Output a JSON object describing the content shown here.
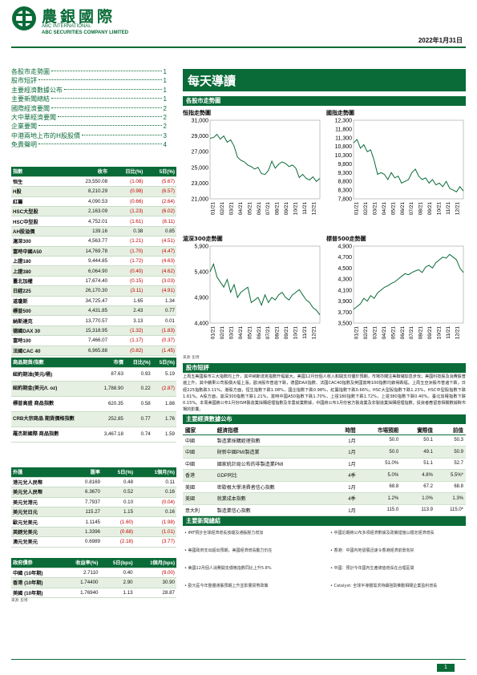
{
  "header": {
    "company_zh": "農銀國際",
    "company_en1": "ABC INTERNATIONAL",
    "company_en2": "ABC SECURITIES COMPANY LIMITED",
    "date": "2022年1月31日"
  },
  "toc": [
    {
      "t": "各股市走勢圖",
      "p": "1"
    },
    {
      "t": "股市短評",
      "p": "1"
    },
    {
      "t": "主要經濟數據公布",
      "p": "1"
    },
    {
      "t": "主要新聞總結",
      "p": "1"
    },
    {
      "t": "國際經濟要聞",
      "p": "2"
    },
    {
      "t": "大中華經濟要聞",
      "p": "2"
    },
    {
      "t": "企業要聞",
      "p": "2"
    },
    {
      "t": "中港兩地上市的H股股價",
      "p": "3"
    },
    {
      "t": "免責聲明",
      "p": "4"
    }
  ],
  "indices": {
    "headers": [
      "指數",
      "收市",
      "日比(%)",
      "5日(%)"
    ],
    "rows": [
      [
        "恒生",
        "23,550.08",
        "(1.08)",
        "(5.67)"
      ],
      [
        "H股",
        "8,210.29",
        "(0.98)",
        "(6.57)"
      ],
      [
        "紅籌",
        "4,090.53",
        "(0.66)",
        "(2.64)"
      ],
      [
        "HSC大型股",
        "2,163.09",
        "(1.23)",
        "(6.02)"
      ],
      [
        "HSC中型股",
        "4,752.01",
        "(1.61)",
        "(8.11)"
      ],
      [
        "AH股溢價",
        "139.16",
        "0.38",
        "0.85"
      ],
      [
        "滬深300",
        "4,563.77",
        "(1.21)",
        "(4.51)"
      ],
      [
        "富時中國A50",
        "14,769.78",
        "(1.70)",
        "(4.47)"
      ],
      [
        "上證180",
        "9,444.85",
        "(1.72)",
        "(4.63)"
      ],
      [
        "上證380",
        "6,064.90",
        "(0.40)",
        "(4.62)"
      ],
      [
        "臺北加權",
        "17,674.40",
        "(0.15)",
        "(3.03)"
      ],
      [
        "日經225",
        "26,170.30",
        "(3.11)",
        "(4.91)"
      ],
      [
        "道瓊斯",
        "34,725.47",
        "1.65",
        "1.34"
      ],
      [
        "標普500",
        "4,431.85",
        "2.43",
        "0.77"
      ],
      [
        "納斯達克",
        "13,770.57",
        "3.13",
        "0.01"
      ],
      [
        "德國DAX 30",
        "15,318.95",
        "(1.32)",
        "(1.83)"
      ],
      [
        "富時100",
        "7,466.07",
        "(1.17)",
        "(0.37)"
      ],
      [
        "法國CAC 40",
        "6,965.88",
        "(0.82)",
        "(1.45)"
      ]
    ]
  },
  "commodities": {
    "headers": [
      "商品期貨/指數",
      "市價",
      "日比(%)",
      "5日(%)"
    ],
    "rows": [
      [
        "紐約期油(美元/桶)",
        "87.63",
        "0.93",
        "5.19"
      ],
      [
        "紐約期金(美元/t. oz)",
        "1,788.90",
        "0.22",
        "(2.87)"
      ],
      [
        "標普高盛 商品指數",
        "620.35",
        "0.58",
        "1.88"
      ],
      [
        "CRB大宗商品 期貨價格指數",
        "252.85",
        "0.77",
        "1.76"
      ],
      [
        "羅杰斯國際 商品指數",
        "3,467.18",
        "0.74",
        "1.59"
      ]
    ]
  },
  "fx": {
    "headers": [
      "外匯",
      "匯率",
      "5日(%)",
      "1個月(%)"
    ],
    "rows": [
      [
        "港元兌人民幣",
        "0.8169",
        "0.48",
        "0.11"
      ],
      [
        "美元兌人民幣",
        "6.3670",
        "0.52",
        "0.16"
      ],
      [
        "美元兌港元",
        "7.7937",
        "0.10",
        "(0.04)"
      ],
      [
        "美元兌日元",
        "115.27",
        "1.15",
        "0.16"
      ],
      [
        "歐元兌美元",
        "1.1145",
        "(1.60)",
        "(1.98)"
      ],
      [
        "英鎊兌美元",
        "1.3396",
        "(0.68)",
        "(1.01)"
      ],
      [
        "澳元兌美元",
        "0.6989",
        "(2.18)",
        "(3.77)"
      ]
    ]
  },
  "bonds": {
    "headers": [
      "政府債券",
      "收益率(%)",
      "5日(bps)",
      "1個月(bps)"
    ],
    "rows": [
      [
        "中國 (10年期)",
        "2.7110",
        "0.40",
        "(9.00)"
      ],
      [
        "香港 (10年期)",
        "1.74400",
        "2.90",
        "30.90"
      ],
      [
        "美國 (10年期)",
        "1.76940",
        "1.13",
        "28.87"
      ]
    ]
  },
  "source": "來源: 彭博",
  "banner": "每天導讀",
  "charts_section": "各股市走勢圖",
  "charts": [
    {
      "title": "恒指走勢圖",
      "yticks": [
        "31,000",
        "29,000",
        "27,000",
        "25,000",
        "23,000",
        "21,000"
      ],
      "ymin": 21000,
      "ymax": 31000,
      "values": [
        28700,
        28800,
        29200,
        28600,
        29000,
        28200,
        28500,
        27700,
        26300,
        25900,
        25700,
        25300,
        25100,
        24800,
        25000,
        24200,
        24100,
        24600,
        25800,
        24900,
        25400,
        25700,
        25500,
        25100,
        25300,
        24900,
        23700,
        24100,
        23600,
        23400,
        23800,
        23200,
        23600
      ]
    },
    {
      "title": "國指走勢圖",
      "yticks": [
        "12,300",
        "11,800",
        "11,300",
        "10,800",
        "10,300",
        "9,800",
        "9,300",
        "8,800",
        "8,300",
        "7,800"
      ],
      "ymin": 7800,
      "ymax": 12300,
      "values": [
        11000,
        11200,
        10700,
        10900,
        10500,
        10600,
        10000,
        9200,
        9300,
        9200,
        8900,
        9300,
        9000,
        9100,
        8700,
        8800,
        8900,
        9300,
        9500,
        9100,
        8900,
        9000,
        8700,
        8900,
        8600,
        8700,
        8500,
        8800,
        8400,
        8300,
        8200,
        8500,
        8250
      ]
    },
    {
      "title": "滬深300走勢圖",
      "yticks": [
        "5,900",
        "5,400",
        "4,900",
        "4,400"
      ],
      "ymin": 4400,
      "ymax": 5900,
      "values": [
        5400,
        5550,
        5300,
        5200,
        5100,
        5250,
        5000,
        5150,
        4900,
        5000,
        5050,
        5100,
        4800,
        4850,
        4900,
        4750,
        4950,
        4800,
        4900,
        4850,
        4950,
        5000,
        4900,
        4850,
        4950,
        5000,
        5050,
        4950,
        4850,
        4800,
        4700,
        4650,
        4560
      ]
    },
    {
      "title": "標普500走勢圖",
      "yticks": [
        "4,900",
        "4,700",
        "4,500",
        "4,300",
        "4,100",
        "3,900",
        "3,700",
        "3,500"
      ],
      "ymin": 3500,
      "ymax": 4900,
      "values": [
        3750,
        3800,
        3850,
        3950,
        3900,
        4000,
        3950,
        4050,
        4100,
        4150,
        4180,
        4220,
        4250,
        4300,
        4350,
        4400,
        4380,
        4420,
        4450,
        4470,
        4420,
        4520,
        4550,
        4500,
        4600,
        4650,
        4700,
        4680,
        4750,
        4700,
        4650,
        4500,
        4420
      ]
    }
  ],
  "xticks": [
    "01/21",
    "02/21",
    "03/21",
    "04/21",
    "05/21",
    "06/21",
    "07/21",
    "08/21",
    "09/21",
    "10/21",
    "11/21",
    "12/21"
  ],
  "brief_title": "股市短評",
  "brief_text": "上周五美國股市三大指數均上升，其中納斯達克指數升幅最大。美國12月份個人收入和開支均優於預期，市場亦關注美聯儲加息步伐；美國科技股及消費股普遍上升，其中蘋果公司股價大幅上漲。歐洲股市普遍下跌，德國DAX指數、法國CAC40指數及英國富時100指數均錄得跌幅。上周五亞洲股市普遍下跌，日經225指數跌3.11%。港股方面，恒生指數下跌1.08%，國企指數下跌0.98%，紅籌指數下跌0.66%；HSC大型股指數下跌1.23%，HSC中型股指數下跌1.61%。A股方面，滬深300指數下跌1.21%，富時中國A50指數下跌1.70%，上證180指數下跌1.72%，上證380指數下跌0.40%。臺北加權指數下跌0.15%。本周美國將公布1月份ISM製造業採購經理指數及非農就業數據，中國將公布1月份官方製造業及非製造業採購經理指數，投資者應留意相關數據對市場的影響。",
  "econ_section": "主要經濟數據公布",
  "econ": {
    "headers": [
      "國家",
      "經濟指標",
      "時間",
      "市場預期",
      "實際值",
      "前值"
    ],
    "rows": [
      [
        "中國",
        "製造業採購經理指數",
        "1月",
        "50.0",
        "50.1",
        "50.3"
      ],
      [
        "中國",
        "財新中國PMI製造業",
        "1月",
        "50.0",
        "49.1",
        "50.9"
      ],
      [
        "中國",
        "國家統計局公布的非製造業PMI",
        "1月",
        "51.0%",
        "51.1",
        "52.7"
      ],
      [
        "香港",
        "GDP同比",
        "4季",
        "5.0%",
        "4.8%",
        "5.5%*"
      ],
      [
        "美國",
        "密歇根大學消費者信心指數",
        "1月",
        "68.8",
        "67.2",
        "68.8"
      ],
      [
        "美國",
        "就業成本指數",
        "4季",
        "1.2%",
        "1.0%",
        "1.3%"
      ],
      [
        "意大利",
        "製造業信心指數",
        "1月",
        "115.0",
        "113.9",
        "115.0*"
      ]
    ]
  },
  "econ_source": "來源: 彭博 (*經修訂數據)",
  "news_section": "主要新聞總結",
  "news_left": [
    "IMF預計全球經濟增長放緩及通脹壓力增加",
    "美國政府支出超出預期，美國經濟增長動力仍在",
    "美國12月個人消費開支價格指數同比上升5.8%",
    "歐元區今年整體通脹預期上升並影響貨幣政策"
  ],
  "news_right": [
    "中國近期將公布多項經濟數據及政策措施以穩定經濟增長",
    "香港：中國內地發展迅速令香港經濟前景向好",
    "中國：預計今年國內生產總值增長在合理區間",
    "Catalyst: 全球半導體需求持續強勁推動相關企業盈利增長"
  ],
  "footer": {
    "page": "1"
  }
}
